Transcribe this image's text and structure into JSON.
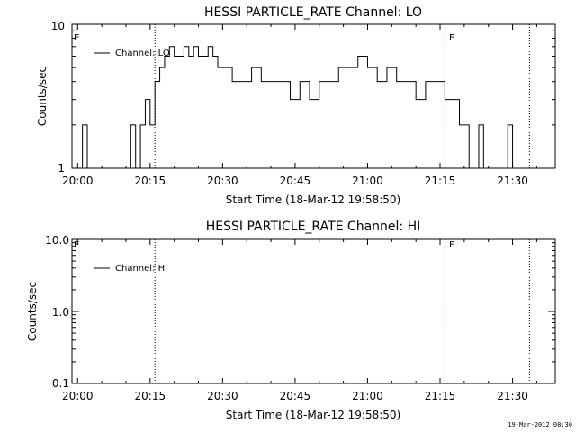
{
  "chart_data": [
    {
      "type": "line",
      "title": "HESSI PARTICLE_RATE Channel: LO",
      "xlabel": "Start Time (18-Mar-12 19:58:50)",
      "ylabel": "Counts/sec",
      "yscale": "log",
      "ylim": [
        1,
        10
      ],
      "y_tick_labels": [
        "1",
        "10"
      ],
      "xlim": [
        "19:58:50",
        "21:38:50"
      ],
      "x_tick_labels": [
        "20:00",
        "20:15",
        "20:30",
        "20:45",
        "21:00",
        "21:15",
        "21:30"
      ],
      "legend": {
        "placement": "top-left",
        "entries": [
          "Channel: LO"
        ]
      },
      "event_markers": [
        {
          "time": "20:16:00",
          "label": ""
        },
        {
          "time": "21:16:00",
          "label": "E"
        },
        {
          "time": "21:33:30",
          "label": ""
        }
      ],
      "start_marker_label": "E",
      "grid": false,
      "series": [
        {
          "name": "Channel: LO",
          "x": [
            "19:58:50",
            "20:00:00",
            "20:01:00",
            "20:02:00",
            "20:03:00",
            "20:10:00",
            "20:11:00",
            "20:12:00",
            "20:13:00",
            "20:14:00",
            "20:15:00",
            "20:16:00",
            "20:17:00",
            "20:18:00",
            "20:19:00",
            "20:20:00",
            "20:21:00",
            "20:22:00",
            "20:23:00",
            "20:24:00",
            "20:25:00",
            "20:26:00",
            "20:27:00",
            "20:28:00",
            "20:29:00",
            "20:30:00",
            "20:31:00",
            "20:32:00",
            "20:33:00",
            "20:34:00",
            "20:36:00",
            "20:38:00",
            "20:40:00",
            "20:42:00",
            "20:44:00",
            "20:46:00",
            "20:48:00",
            "20:50:00",
            "20:52:00",
            "20:54:00",
            "20:56:00",
            "20:58:00",
            "21:00:00",
            "21:02:00",
            "21:04:00",
            "21:06:00",
            "21:08:00",
            "21:10:00",
            "21:12:00",
            "21:14:00",
            "21:16:00",
            "21:17:00",
            "21:18:00",
            "21:19:00",
            "21:20:00",
            "21:21:00",
            "21:22:00",
            "21:23:00",
            "21:24:00",
            "21:25:00",
            "21:26:00",
            "21:27:00",
            "21:28:00",
            "21:29:00",
            "21:30:00",
            "21:31:00",
            "21:32:00",
            "21:33:00",
            "21:34:00",
            "21:35:00",
            "21:36:00",
            "21:37:00",
            "21:38:50"
          ],
          "y": [
            1,
            1,
            2,
            1,
            1,
            1,
            2,
            1,
            2,
            3,
            2,
            4,
            5,
            6,
            7,
            6,
            6,
            7,
            6,
            7,
            6,
            6,
            7,
            6,
            5,
            5,
            5,
            4,
            4,
            4,
            5,
            4,
            4,
            4,
            3,
            4,
            3,
            4,
            4,
            5,
            5,
            6,
            5,
            4,
            5,
            4,
            4,
            3,
            4,
            4,
            3,
            3,
            3,
            2,
            2,
            1,
            1,
            2,
            1,
            1,
            1,
            1,
            1,
            2,
            1,
            1,
            1,
            1,
            1,
            1,
            1,
            1,
            1
          ]
        }
      ]
    },
    {
      "type": "line",
      "title": "HESSI PARTICLE_RATE Channel: HI",
      "xlabel": "Start Time (18-Mar-12 19:58:50)",
      "ylabel": "Counts/sec",
      "yscale": "log",
      "ylim": [
        0.1,
        10
      ],
      "y_tick_labels": [
        "0.1",
        "1.0",
        "10.0"
      ],
      "xlim": [
        "19:58:50",
        "21:38:50"
      ],
      "x_tick_labels": [
        "20:00",
        "20:15",
        "20:30",
        "20:45",
        "21:00",
        "21:15",
        "21:30"
      ],
      "legend": {
        "placement": "top-left",
        "entries": [
          "Channel: HI"
        ]
      },
      "event_markers": [
        {
          "time": "20:16:00",
          "label": ""
        },
        {
          "time": "21:16:00",
          "label": "E"
        },
        {
          "time": "21:33:30",
          "label": ""
        }
      ],
      "start_marker_label": "E",
      "grid": false,
      "series": [
        {
          "name": "Channel: HI",
          "x": [],
          "y": []
        }
      ]
    }
  ],
  "footer": {
    "timestamp": "19-Mar-2012 08:30"
  }
}
